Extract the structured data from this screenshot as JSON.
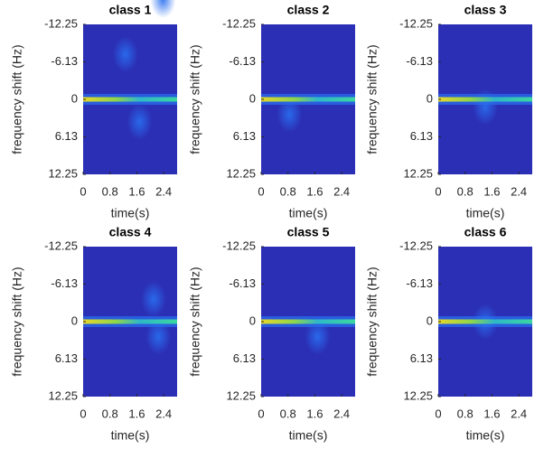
{
  "chart_data": [
    {
      "type": "heatmap",
      "title": "class 1",
      "xlabel": "time(s)",
      "ylabel": "frequency shift (Hz)",
      "xlim": [
        0,
        2.8
      ],
      "xticks": [
        0,
        0.8,
        1.6,
        2.4
      ],
      "ylim": [
        -12.25,
        12.25
      ],
      "yticks": [
        -12.25,
        -6.13,
        0,
        6.13,
        12.25
      ],
      "y_reversed": true
    },
    {
      "type": "heatmap",
      "title": "class 2",
      "xlabel": "time(s)",
      "ylabel": "frequency shift (Hz)",
      "xlim": [
        0,
        2.8
      ],
      "xticks": [
        0,
        0.8,
        1.6,
        2.4
      ],
      "ylim": [
        -12.25,
        12.25
      ],
      "yticks": [
        -12.25,
        -6.13,
        0,
        6.13,
        12.25
      ],
      "y_reversed": true
    },
    {
      "type": "heatmap",
      "title": "class 3",
      "xlabel": "time(s)",
      "ylabel": "frequency shift (Hz)",
      "xlim": [
        0,
        2.8
      ],
      "xticks": [
        0,
        0.8,
        1.6,
        2.4
      ],
      "ylim": [
        -12.25,
        12.25
      ],
      "yticks": [
        -12.25,
        -6.13,
        0,
        6.13,
        12.25
      ],
      "y_reversed": true
    },
    {
      "type": "heatmap",
      "title": "class 4",
      "xlabel": "time(s)",
      "ylabel": "frequency shift (Hz)",
      "xlim": [
        0,
        2.8
      ],
      "xticks": [
        0,
        0.8,
        1.6,
        2.4
      ],
      "ylim": [
        -12.25,
        12.25
      ],
      "yticks": [
        -12.25,
        -6.13,
        0,
        6.13,
        12.25
      ],
      "y_reversed": true
    },
    {
      "type": "heatmap",
      "title": "class 5",
      "xlabel": "time(s)",
      "ylabel": "frequency shift (Hz)",
      "xlim": [
        0,
        2.8
      ],
      "xticks": [
        0,
        0.8,
        1.6,
        2.4
      ],
      "ylim": [
        -12.25,
        12.25
      ],
      "yticks": [
        -12.25,
        -6.13,
        0,
        6.13,
        12.25
      ],
      "y_reversed": true
    },
    {
      "type": "heatmap",
      "title": "class 6",
      "xlabel": "time(s)",
      "ylabel": "frequency shift (Hz)",
      "xlim": [
        0,
        2.8
      ],
      "xticks": [
        0,
        0.8,
        1.6,
        2.4
      ],
      "ylim": [
        -12.25,
        12.25
      ],
      "yticks": [
        -12.25,
        -6.13,
        0,
        6.13,
        12.25
      ],
      "y_reversed": true
    }
  ]
}
